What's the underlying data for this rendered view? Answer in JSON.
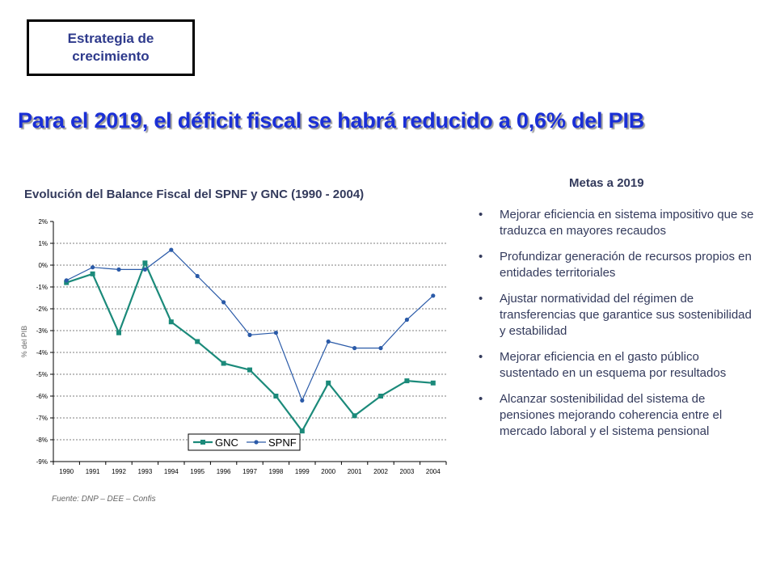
{
  "badge": {
    "label": "Estrategia de\ncrecimiento"
  },
  "headline": "Para el 2019, el déficit fiscal se habrá reducido a 0,6% del PIB",
  "chart_data": {
    "type": "line",
    "title": "Evolución del Balance Fiscal del SPNF y GNC (1990 - 2004)",
    "ylabel": "% del PIB",
    "xlabel": "",
    "x": [
      "1990",
      "1991",
      "1992",
      "1993",
      "1994",
      "1995",
      "1996",
      "1997",
      "1998",
      "1999",
      "2000",
      "2001",
      "2002",
      "2003",
      "2004"
    ],
    "yticks": [
      "2%",
      "1%",
      "0%",
      "-1%",
      "-2%",
      "-3%",
      "-4%",
      "-5%",
      "-6%",
      "-7%",
      "-8%",
      "-9%"
    ],
    "ylim": [
      -9,
      2
    ],
    "grid": true,
    "legend": "bottom-right",
    "series": [
      {
        "name": "GNC",
        "color": "#1b8a7a",
        "marker": "square",
        "values": [
          -0.8,
          -0.4,
          -3.1,
          0.1,
          -2.6,
          -3.5,
          -4.5,
          -4.8,
          -6.0,
          -7.6,
          -5.4,
          -6.9,
          -6.0,
          -5.3,
          -5.4
        ]
      },
      {
        "name": "SPNF",
        "color": "#2a5aa8",
        "marker": "circle",
        "values": [
          -0.7,
          -0.1,
          -0.2,
          -0.2,
          0.7,
          -0.5,
          -1.7,
          -3.2,
          -3.1,
          -6.2,
          -3.5,
          -3.8,
          -3.8,
          -2.5,
          -1.4
        ]
      }
    ]
  },
  "source": "Fuente:     DNP – DEE – Confis",
  "goals": {
    "title": "Metas a 2019",
    "bullet": "•",
    "items": [
      "Mejorar eficiencia en sistema impositivo que se traduzca en mayores recaudos",
      "Profundizar generación de recursos propios en entidades territoriales",
      "Ajustar normatividad del régimen de transferencias que garantice sus sostenibilidad y estabilidad",
      "Mejorar eficiencia en el gasto público sustentado en un esquema por resultados",
      "Alcanzar sostenibilidad del sistema de pensiones mejorando coherencia entre el mercado laboral y el sistema pensional"
    ]
  }
}
